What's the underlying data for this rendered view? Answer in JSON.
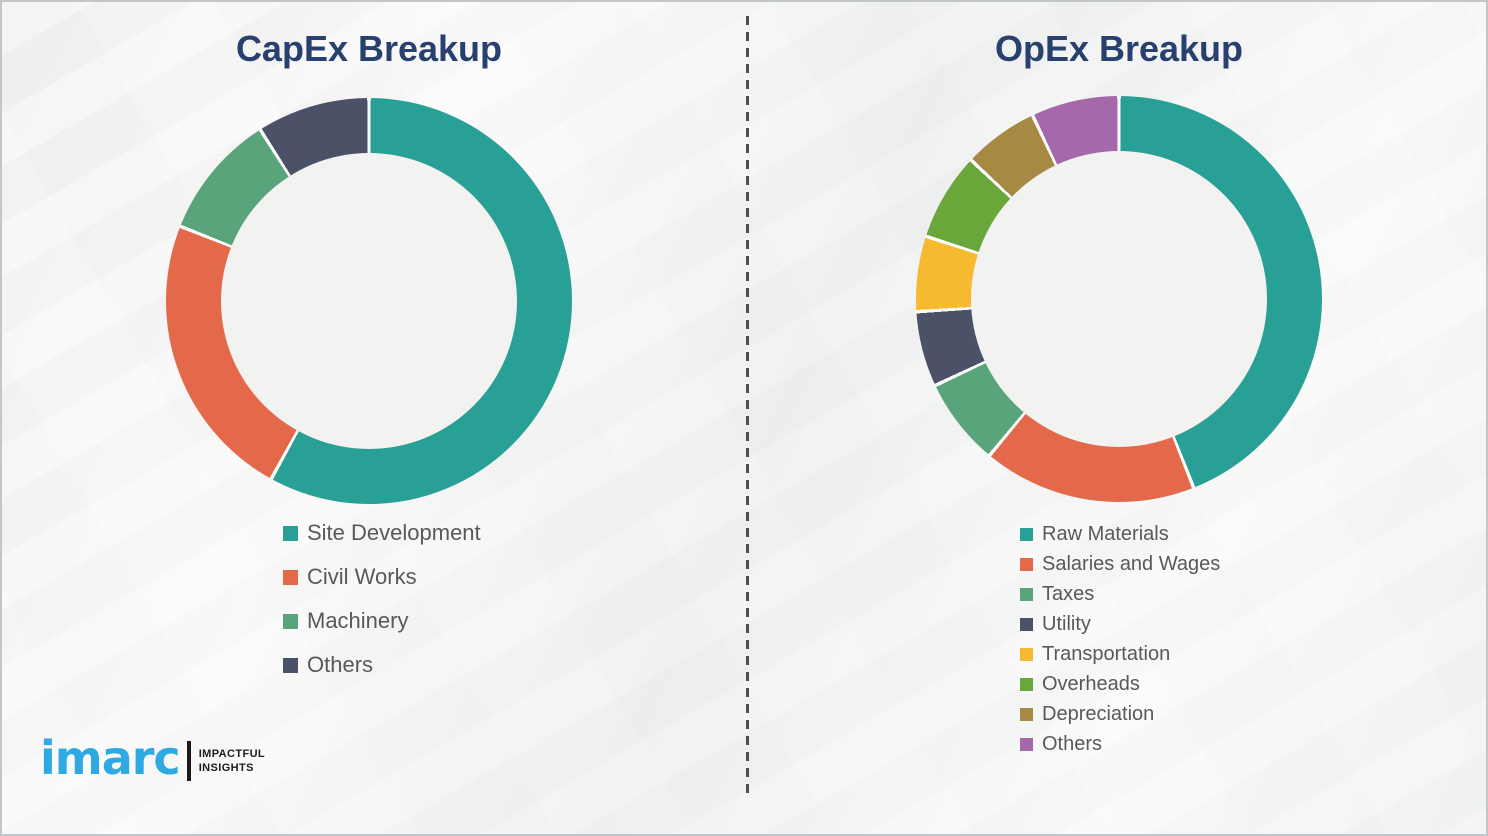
{
  "chart_data": [
    {
      "type": "pie",
      "variant": "donut",
      "title": "CapEx Breakup",
      "start_angle_deg": 0,
      "direction": "clockwise",
      "legend_position": "below",
      "donut_hole_ratio": 0.73,
      "segments": [
        {
          "label": "Site Development",
          "value": 58,
          "color": "#29a096"
        },
        {
          "label": "Civil Works",
          "value": 23,
          "color": "#e4694a"
        },
        {
          "label": "Machinery",
          "value": 10,
          "color": "#5aa47c"
        },
        {
          "label": "Others",
          "value": 9,
          "color": "#4b5268"
        }
      ]
    },
    {
      "type": "pie",
      "variant": "donut",
      "title": "OpEx Breakup",
      "start_angle_deg": 0,
      "direction": "clockwise",
      "legend_position": "below",
      "donut_hole_ratio": 0.73,
      "segments": [
        {
          "label": "Raw Materials",
          "value": 44,
          "color": "#29a096"
        },
        {
          "label": "Salaries and Wages",
          "value": 17,
          "color": "#e4694a"
        },
        {
          "label": "Taxes",
          "value": 7,
          "color": "#5aa47c"
        },
        {
          "label": "Utility",
          "value": 6,
          "color": "#4b5268"
        },
        {
          "label": "Transportation",
          "value": 6,
          "color": "#f6ba31"
        },
        {
          "label": "Overheads",
          "value": 7,
          "color": "#69a73b"
        },
        {
          "label": "Depreciation",
          "value": 6,
          "color": "#a68a44"
        },
        {
          "label": "Others",
          "value": 7,
          "color": "#a568ab"
        }
      ]
    }
  ],
  "style": {
    "title_color": "#28406e",
    "legend_text_color": "#595959",
    "segment_gap_color": "#fbfbfa"
  },
  "logo": {
    "brand": "imarc",
    "brand_color": "#2fa9e1",
    "tagline_line1": "IMPACTFUL",
    "tagline_line2": "INSIGHTS"
  }
}
